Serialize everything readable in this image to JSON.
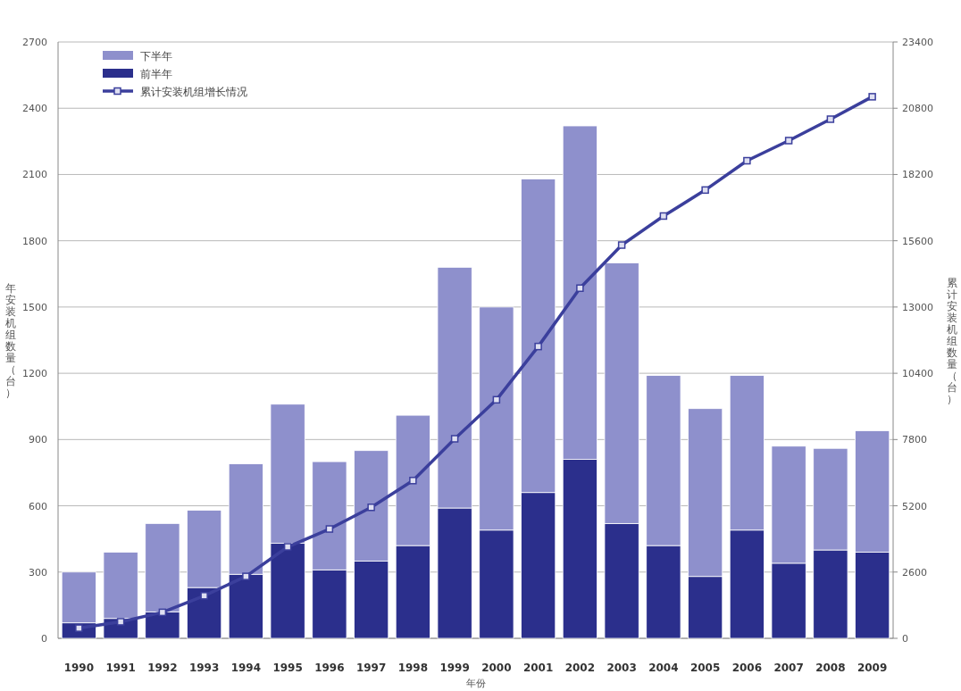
{
  "chart_data": {
    "type": "bar",
    "stacked": true,
    "xlabel": "年份",
    "ylabel": "年安装机组数量（台）",
    "y2label": "累计安装机组数量（台）",
    "categories": [
      "1990",
      "1991",
      "1992",
      "1993",
      "1994",
      "1995",
      "1996",
      "1997",
      "1998",
      "1999",
      "2000",
      "2001",
      "2002",
      "2003",
      "2004",
      "2005",
      "2006",
      "2007",
      "2008",
      "2009"
    ],
    "series": [
      {
        "name": "前半年",
        "color": "#2b2f8c",
        "values": [
          70,
          90,
          120,
          230,
          290,
          430,
          310,
          350,
          420,
          590,
          490,
          660,
          810,
          520,
          420,
          280,
          490,
          340,
          400,
          390
        ]
      },
      {
        "name": "下半年",
        "color": "#8e90cc",
        "values": [
          230,
          300,
          400,
          350,
          500,
          630,
          490,
          500,
          590,
          1090,
          1010,
          1420,
          1510,
          1180,
          770,
          760,
          700,
          530,
          460,
          550
        ]
      },
      {
        "name": "累计安装机组增长情况",
        "type": "line",
        "axis": "y2",
        "color": "#3b3f9c",
        "values": [
          400,
          650,
          1020,
          1670,
          2430,
          3590,
          4290,
          5140,
          6190,
          7830,
          9360,
          11450,
          13740,
          15430,
          16570,
          17590,
          18740,
          19530,
          20370,
          21250
        ]
      }
    ],
    "ylim": [
      0,
      2700
    ],
    "yticks": [
      0,
      300,
      600,
      900,
      1200,
      1500,
      1800,
      2100,
      2400,
      2700
    ],
    "y2lim": [
      0,
      23400
    ],
    "y2ticks": [
      0,
      2600,
      5200,
      7800,
      10400,
      13000,
      15600,
      18200,
      20800,
      23400
    ],
    "grid": "y",
    "legend": "top left",
    "marker": "square"
  }
}
